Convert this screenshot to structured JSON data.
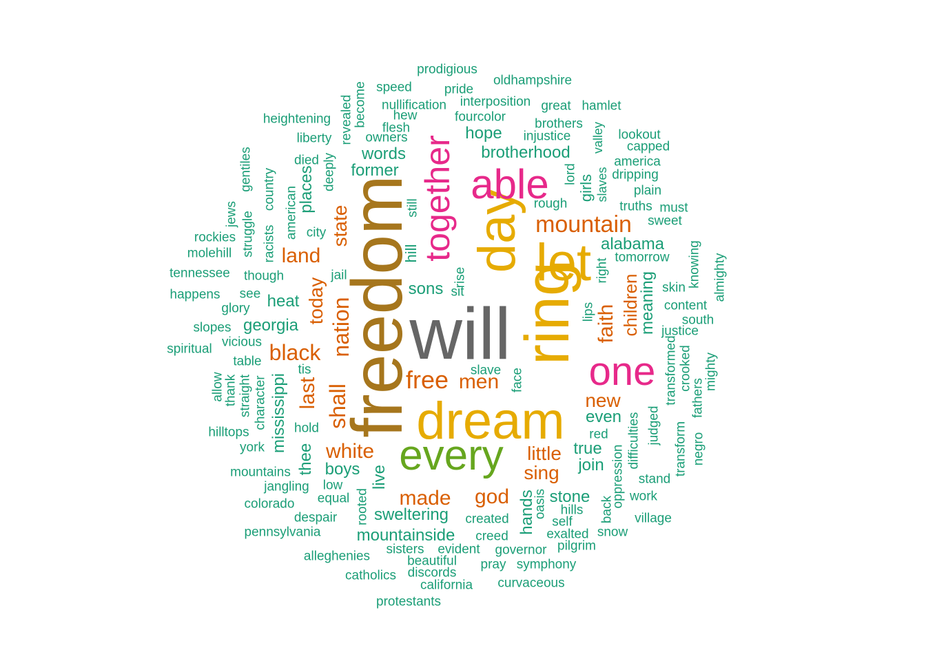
{
  "palette": {
    "teal": "#1b9e77",
    "orange": "#d95f02",
    "pink": "#e7298a",
    "green": "#66a61e",
    "gold": "#e6ab02",
    "brown": "#a6761d",
    "gray": "#666666"
  },
  "words": [
    {
      "text": "will",
      "color": "gray"
    },
    {
      "text": "freedom",
      "color": "brown"
    },
    {
      "text": "ring",
      "color": "gold"
    },
    {
      "text": "dream",
      "color": "gold"
    },
    {
      "text": "let",
      "color": "gold"
    },
    {
      "text": "day",
      "color": "gold"
    },
    {
      "text": "every",
      "color": "green"
    },
    {
      "text": "able",
      "color": "pink"
    },
    {
      "text": "one",
      "color": "pink"
    },
    {
      "text": "together",
      "color": "pink"
    },
    {
      "text": "mountain",
      "color": "orange"
    },
    {
      "text": "faith",
      "color": "orange"
    },
    {
      "text": "children",
      "color": "orange"
    },
    {
      "text": "free",
      "color": "orange"
    },
    {
      "text": "men",
      "color": "orange"
    },
    {
      "text": "new",
      "color": "orange"
    },
    {
      "text": "nation",
      "color": "orange"
    },
    {
      "text": "shall",
      "color": "orange"
    },
    {
      "text": "state",
      "color": "orange"
    },
    {
      "text": "today",
      "color": "orange"
    },
    {
      "text": "black",
      "color": "orange"
    },
    {
      "text": "land",
      "color": "orange"
    },
    {
      "text": "last",
      "color": "orange"
    },
    {
      "text": "white",
      "color": "orange"
    },
    {
      "text": "made",
      "color": "orange"
    },
    {
      "text": "god",
      "color": "orange"
    },
    {
      "text": "little",
      "color": "orange"
    },
    {
      "text": "sing",
      "color": "orange"
    },
    {
      "text": "alabama",
      "color": "teal"
    },
    {
      "text": "brotherhood",
      "color": "teal"
    },
    {
      "text": "hope",
      "color": "teal"
    },
    {
      "text": "words",
      "color": "teal"
    },
    {
      "text": "former",
      "color": "teal"
    },
    {
      "text": "girls",
      "color": "teal"
    },
    {
      "text": "rough",
      "color": "teal"
    },
    {
      "text": "lord",
      "color": "teal"
    },
    {
      "text": "slaves",
      "color": "teal"
    },
    {
      "text": "valley",
      "color": "teal"
    },
    {
      "text": "places",
      "color": "teal"
    },
    {
      "text": "city",
      "color": "teal"
    },
    {
      "text": "hill",
      "color": "teal"
    },
    {
      "text": "still",
      "color": "teal"
    },
    {
      "text": "rise",
      "color": "teal"
    },
    {
      "text": "sit",
      "color": "teal"
    },
    {
      "text": "sons",
      "color": "teal"
    },
    {
      "text": "jail",
      "color": "teal"
    },
    {
      "text": "heat",
      "color": "teal"
    },
    {
      "text": "georgia",
      "color": "teal"
    },
    {
      "text": "mississippi",
      "color": "teal"
    },
    {
      "text": "tis",
      "color": "teal"
    },
    {
      "text": "thee",
      "color": "teal"
    },
    {
      "text": "boys",
      "color": "teal"
    },
    {
      "text": "live",
      "color": "teal"
    },
    {
      "text": "sweltering",
      "color": "teal"
    },
    {
      "text": "mountainside",
      "color": "teal"
    },
    {
      "text": "hands",
      "color": "teal"
    },
    {
      "text": "oasis",
      "color": "teal"
    },
    {
      "text": "stone",
      "color": "teal"
    },
    {
      "text": "join",
      "color": "teal"
    },
    {
      "text": "true",
      "color": "teal"
    },
    {
      "text": "even",
      "color": "teal"
    },
    {
      "text": "red",
      "color": "teal"
    },
    {
      "text": "slave",
      "color": "teal"
    },
    {
      "text": "face",
      "color": "teal"
    },
    {
      "text": "meaning",
      "color": "teal"
    },
    {
      "text": "tomorrow",
      "color": "teal"
    },
    {
      "text": "right",
      "color": "teal"
    },
    {
      "text": "lips",
      "color": "teal"
    },
    {
      "text": "skin",
      "color": "teal"
    },
    {
      "text": "content",
      "color": "teal"
    },
    {
      "text": "south",
      "color": "teal"
    },
    {
      "text": "justice",
      "color": "teal"
    },
    {
      "text": "knowing",
      "color": "teal"
    },
    {
      "text": "almighty",
      "color": "teal"
    },
    {
      "text": "transformed",
      "color": "teal"
    },
    {
      "text": "crooked",
      "color": "teal"
    },
    {
      "text": "fathers",
      "color": "teal"
    },
    {
      "text": "mighty",
      "color": "teal"
    },
    {
      "text": "judged",
      "color": "teal"
    },
    {
      "text": "transform",
      "color": "teal"
    },
    {
      "text": "negro",
      "color": "teal"
    },
    {
      "text": "difficulties",
      "color": "teal"
    },
    {
      "text": "oppression",
      "color": "teal"
    },
    {
      "text": "back",
      "color": "teal"
    },
    {
      "text": "stand",
      "color": "teal"
    },
    {
      "text": "work",
      "color": "teal"
    },
    {
      "text": "village",
      "color": "teal"
    },
    {
      "text": "snow",
      "color": "teal"
    },
    {
      "text": "hills",
      "color": "teal"
    },
    {
      "text": "self",
      "color": "teal"
    },
    {
      "text": "exalted",
      "color": "teal"
    },
    {
      "text": "pilgrim",
      "color": "teal"
    },
    {
      "text": "created",
      "color": "teal"
    },
    {
      "text": "creed",
      "color": "teal"
    },
    {
      "text": "governor",
      "color": "teal"
    },
    {
      "text": "evident",
      "color": "teal"
    },
    {
      "text": "sisters",
      "color": "teal"
    },
    {
      "text": "beautiful",
      "color": "teal"
    },
    {
      "text": "discords",
      "color": "teal"
    },
    {
      "text": "pray",
      "color": "teal"
    },
    {
      "text": "symphony",
      "color": "teal"
    },
    {
      "text": "california",
      "color": "teal"
    },
    {
      "text": "curvaceous",
      "color": "teal"
    },
    {
      "text": "catholics",
      "color": "teal"
    },
    {
      "text": "protestants",
      "color": "teal"
    },
    {
      "text": "alleghenies",
      "color": "teal"
    },
    {
      "text": "pennsylvania",
      "color": "teal"
    },
    {
      "text": "despair",
      "color": "teal"
    },
    {
      "text": "rooted",
      "color": "teal"
    },
    {
      "text": "colorado",
      "color": "teal"
    },
    {
      "text": "equal",
      "color": "teal"
    },
    {
      "text": "low",
      "color": "teal"
    },
    {
      "text": "jangling",
      "color": "teal"
    },
    {
      "text": "mountains",
      "color": "teal"
    },
    {
      "text": "york",
      "color": "teal"
    },
    {
      "text": "hold",
      "color": "teal"
    },
    {
      "text": "hilltops",
      "color": "teal"
    },
    {
      "text": "character",
      "color": "teal"
    },
    {
      "text": "straight",
      "color": "teal"
    },
    {
      "text": "thank",
      "color": "teal"
    },
    {
      "text": "allow",
      "color": "teal"
    },
    {
      "text": "table",
      "color": "teal"
    },
    {
      "text": "vicious",
      "color": "teal"
    },
    {
      "text": "spiritual",
      "color": "teal"
    },
    {
      "text": "slopes",
      "color": "teal"
    },
    {
      "text": "glory",
      "color": "teal"
    },
    {
      "text": "see",
      "color": "teal"
    },
    {
      "text": "happens",
      "color": "teal"
    },
    {
      "text": "though",
      "color": "teal"
    },
    {
      "text": "tennessee",
      "color": "teal"
    },
    {
      "text": "molehill",
      "color": "teal"
    },
    {
      "text": "rockies",
      "color": "teal"
    },
    {
      "text": "jews",
      "color": "teal"
    },
    {
      "text": "struggle",
      "color": "teal"
    },
    {
      "text": "gentiles",
      "color": "teal"
    },
    {
      "text": "racists",
      "color": "teal"
    },
    {
      "text": "country",
      "color": "teal"
    },
    {
      "text": "american",
      "color": "teal"
    },
    {
      "text": "died",
      "color": "teal"
    },
    {
      "text": "deeply",
      "color": "teal"
    },
    {
      "text": "liberty",
      "color": "teal"
    },
    {
      "text": "heightening",
      "color": "teal"
    },
    {
      "text": "revealed",
      "color": "teal"
    },
    {
      "text": "become",
      "color": "teal"
    },
    {
      "text": "owners",
      "color": "teal"
    },
    {
      "text": "flesh",
      "color": "teal"
    },
    {
      "text": "hew",
      "color": "teal"
    },
    {
      "text": "nullification",
      "color": "teal"
    },
    {
      "text": "speed",
      "color": "teal"
    },
    {
      "text": "prodigious",
      "color": "teal"
    },
    {
      "text": "pride",
      "color": "teal"
    },
    {
      "text": "interposition",
      "color": "teal"
    },
    {
      "text": "fourcolor",
      "color": "teal"
    },
    {
      "text": "oldhampshire",
      "color": "teal"
    },
    {
      "text": "great",
      "color": "teal"
    },
    {
      "text": "hamlet",
      "color": "teal"
    },
    {
      "text": "brothers",
      "color": "teal"
    },
    {
      "text": "injustice",
      "color": "teal"
    },
    {
      "text": "lookout",
      "color": "teal"
    },
    {
      "text": "capped",
      "color": "teal"
    },
    {
      "text": "america",
      "color": "teal"
    },
    {
      "text": "dripping",
      "color": "teal"
    },
    {
      "text": "plain",
      "color": "teal"
    },
    {
      "text": "truths",
      "color": "teal"
    },
    {
      "text": "must",
      "color": "teal"
    },
    {
      "text": "sweet",
      "color": "teal"
    }
  ]
}
